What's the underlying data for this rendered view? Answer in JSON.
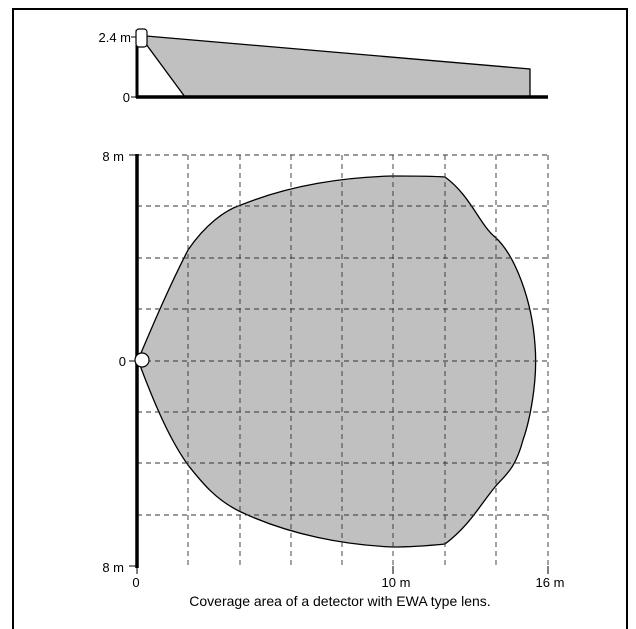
{
  "side_view": {
    "y_labels": [
      "2.4 m",
      "0"
    ],
    "fill_color": "#c0c0c0"
  },
  "top_view": {
    "y_labels": [
      "8 m",
      "0",
      "8 m"
    ],
    "x_labels": [
      "0",
      "10 m",
      "16 m"
    ],
    "fill_color": "#c0c0c0",
    "grid": "dashed"
  },
  "caption": "Coverage area of a detector with EWA type lens."
}
